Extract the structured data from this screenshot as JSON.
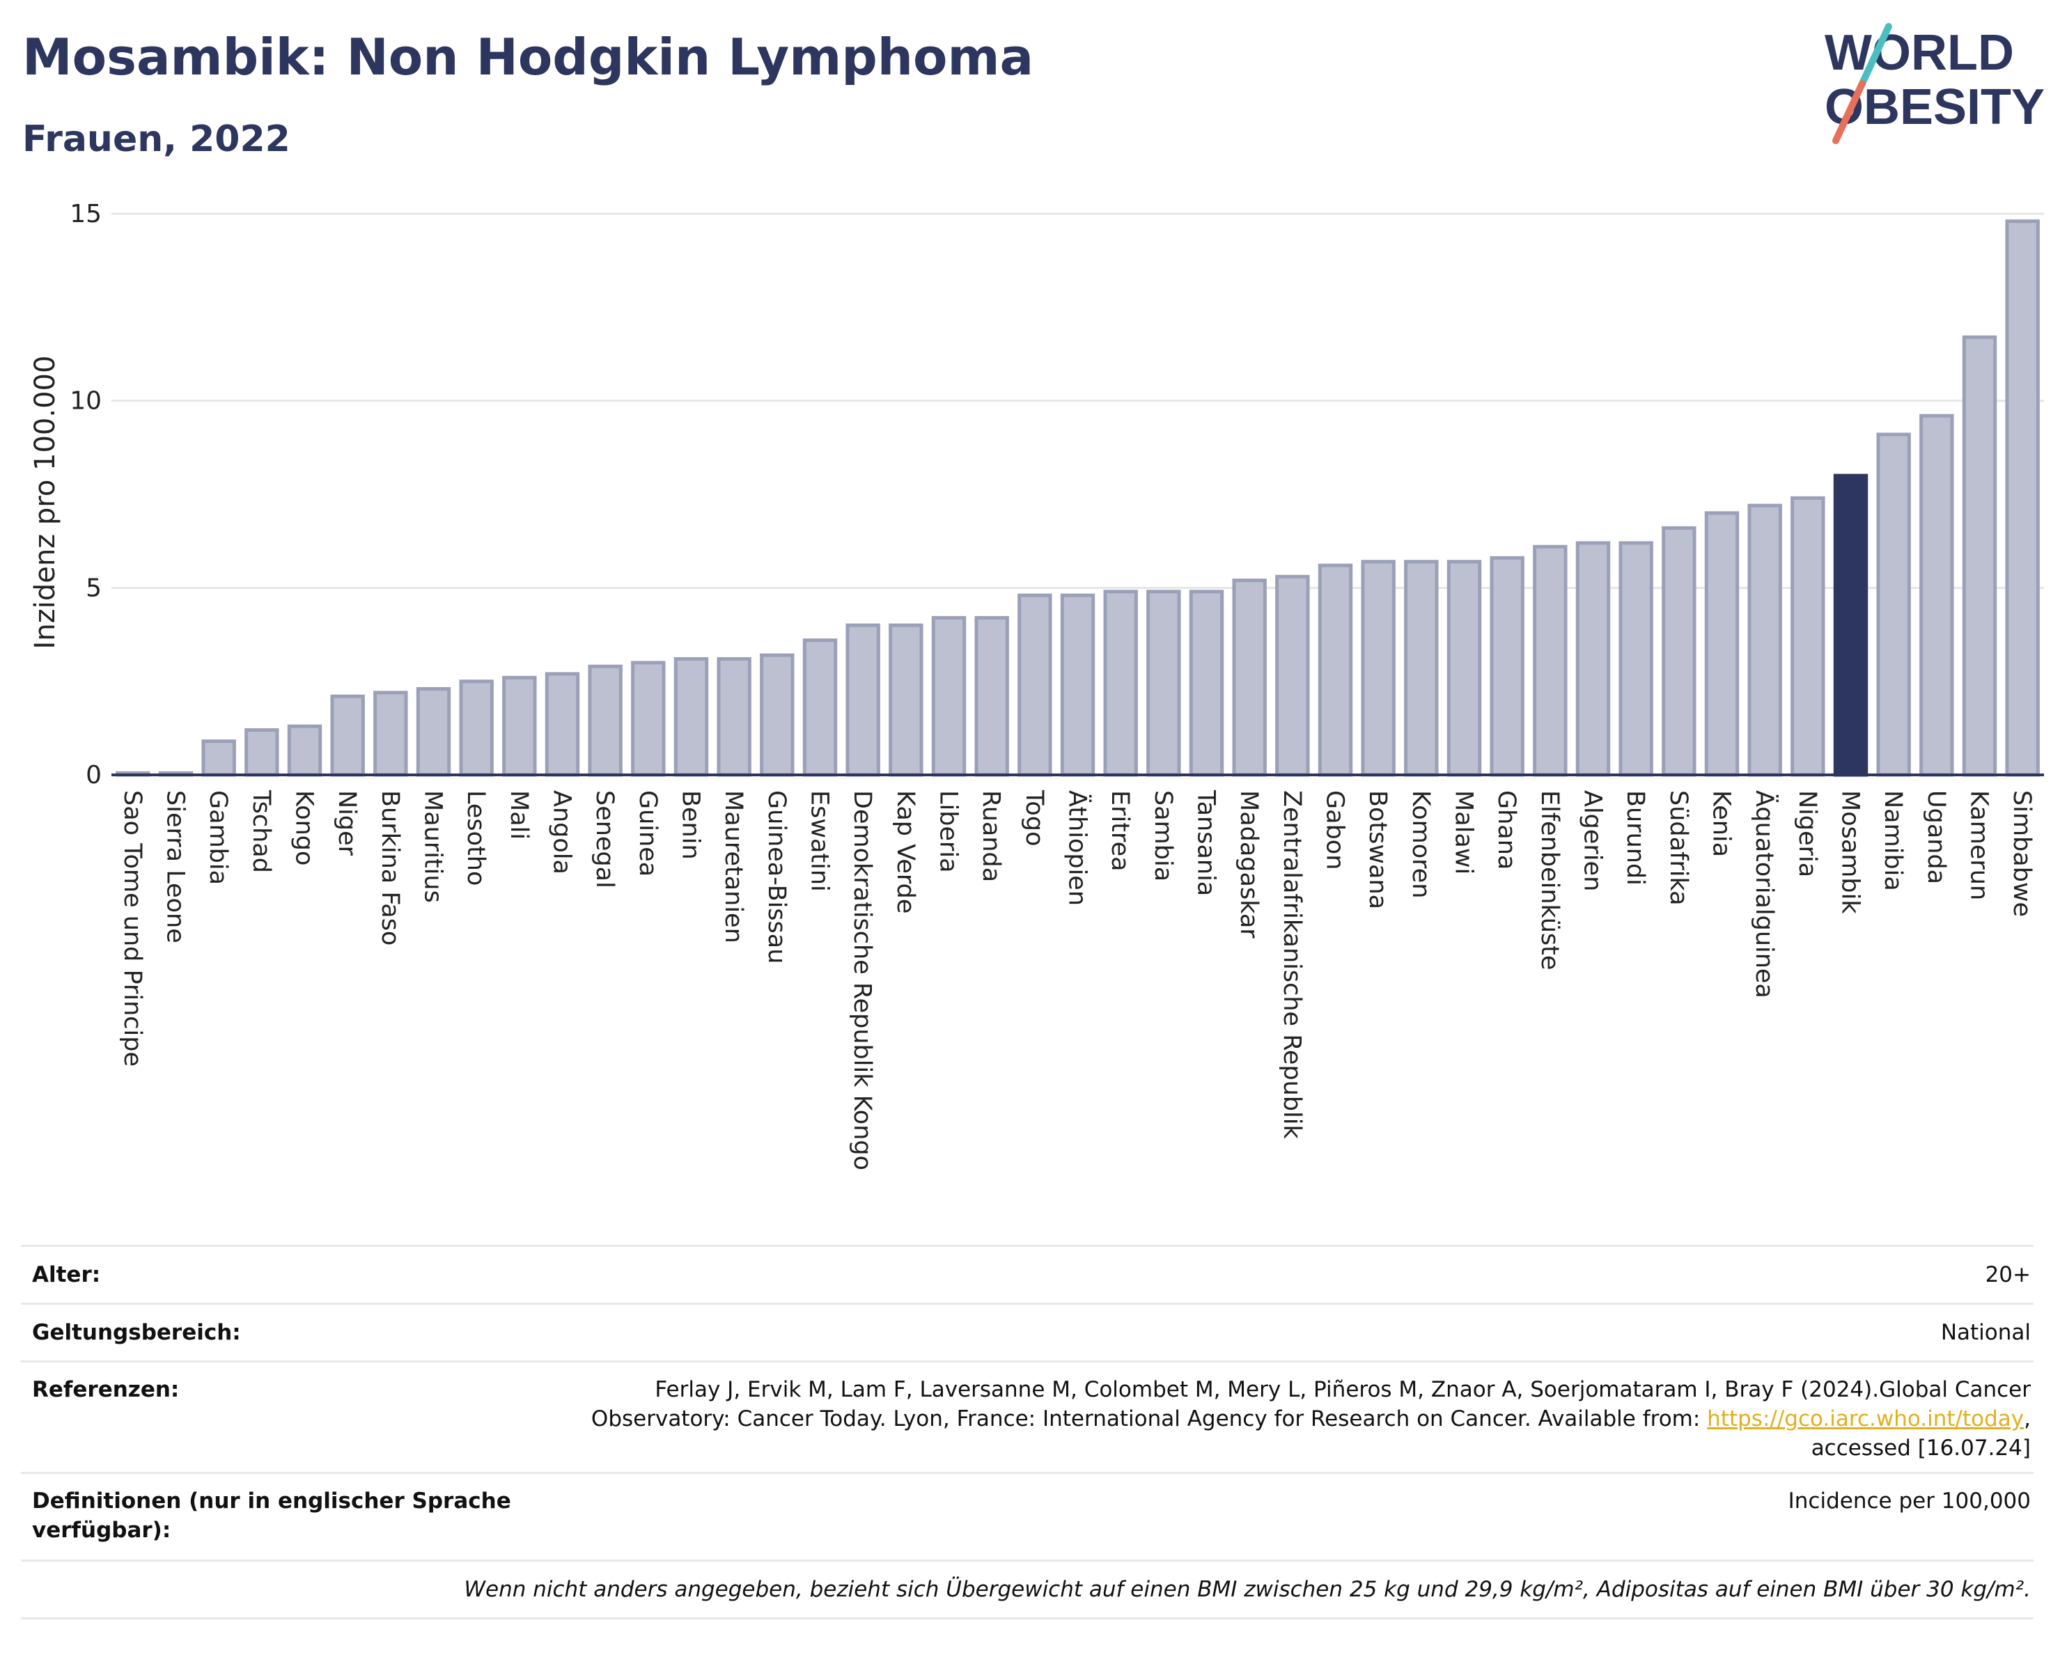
{
  "header": {
    "title": "Mosambik: Non Hodgkin Lymphoma",
    "subtitle": "Frauen, 2022"
  },
  "logo": {
    "line1": "WORLD",
    "line2": "OBESITY",
    "colors": {
      "text": "#2c365e",
      "slash_top": "#4bbfbf",
      "slash_bottom": "#e8705a"
    }
  },
  "chart_data": {
    "type": "bar",
    "title": "Mosambik: Non Hodgkin Lymphoma",
    "subtitle": "Frauen, 2022",
    "xlabel": "",
    "ylabel": "Inzidenz pro 100.000",
    "ylim": [
      0,
      15.5
    ],
    "yticks": [
      0,
      5,
      10,
      15
    ],
    "grid": true,
    "highlight": "Mosambik",
    "colors": {
      "bar": "#bcc0d0",
      "bar_edge": "#9aa0b8",
      "highlight": "#2c365e",
      "grid": "#e6e6e6",
      "axis": "#2c365e"
    },
    "categories": [
      "Sao Tome und Principe",
      "Sierra Leone",
      "Gambia",
      "Tschad",
      "Kongo",
      "Niger",
      "Burkina Faso",
      "Mauritius",
      "Lesotho",
      "Mali",
      "Angola",
      "Senegal",
      "Guinea",
      "Benin",
      "Mauretanien",
      "Guinea-Bissau",
      "Eswatini",
      "Demokratische Republik Kongo",
      "Kap Verde",
      "Liberia",
      "Ruanda",
      "Togo",
      "Äthiopien",
      "Eritrea",
      "Sambia",
      "Tansania",
      "Madagaskar",
      "Zentralafrikanische Republik",
      "Gabon",
      "Botswana",
      "Komoren",
      "Malawi",
      "Ghana",
      "Elfenbeinküste",
      "Algerien",
      "Burundi",
      "Südafrika",
      "Kenia",
      "Äquatorialguinea",
      "Nigeria",
      "Mosambik",
      "Namibia",
      "Uganda",
      "Kamerun",
      "Simbabwe"
    ],
    "values": [
      0.05,
      0.05,
      0.9,
      1.2,
      1.3,
      2.1,
      2.2,
      2.3,
      2.5,
      2.6,
      2.7,
      2.9,
      3.0,
      3.1,
      3.1,
      3.2,
      3.6,
      4.0,
      4.0,
      4.2,
      4.2,
      4.8,
      4.8,
      4.9,
      4.9,
      4.9,
      5.2,
      5.3,
      5.6,
      5.7,
      5.7,
      5.7,
      5.8,
      6.1,
      6.2,
      6.2,
      6.6,
      7.0,
      7.2,
      7.4,
      8.0,
      9.1,
      9.6,
      11.7,
      14.8
    ]
  },
  "info": {
    "age_label": "Alter:",
    "age_value": "20+",
    "scope_label": "Geltungsbereich:",
    "scope_value": "National",
    "ref_label": "Referenzen:",
    "ref_text_1": "Ferlay J, Ervik M, Lam F, Laversanne M, Colombet M, Mery L, Piñeros M, Znaor A, Soerjomataram I, Bray F (2024).Global Cancer Observatory: Cancer Today. Lyon, France: International Agency for Research on Cancer. Available from: ",
    "ref_link": "https://gco.iarc.who.int/today",
    "ref_text_2": ", accessed [16.07.24]",
    "def_label": "Definitionen (nur in englischer Sprache verfügbar):",
    "def_value": "Incidence per 100,000",
    "note": "Wenn nicht anders angegeben, bezieht sich Übergewicht auf einen BMI zwischen 25 kg und 29,9 kg/m², Adipositas auf einen BMI über 30 kg/m²."
  }
}
